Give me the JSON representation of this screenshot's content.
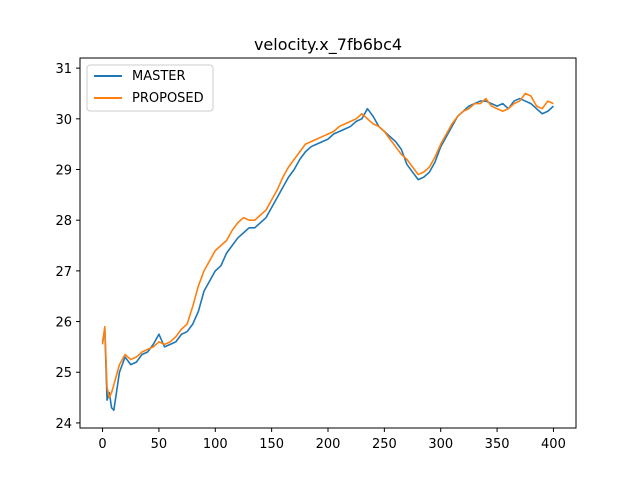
{
  "chart_data": {
    "type": "line",
    "title": "velocity.x_7fb6bc4",
    "xlabel": "",
    "ylabel": "",
    "xlim": [
      -20,
      420
    ],
    "ylim": [
      23.9,
      31.2
    ],
    "xticks": [
      0,
      50,
      100,
      150,
      200,
      250,
      300,
      350,
      400
    ],
    "yticks": [
      24,
      25,
      26,
      27,
      28,
      29,
      30,
      31
    ],
    "grid": false,
    "legend_position": "top-left",
    "series": [
      {
        "name": "MASTER",
        "color": "#1f77b4",
        "x": [
          0,
          2,
          4,
          6,
          8,
          10,
          15,
          20,
          25,
          30,
          35,
          40,
          45,
          50,
          55,
          60,
          65,
          70,
          75,
          80,
          85,
          90,
          95,
          100,
          105,
          110,
          115,
          120,
          125,
          130,
          135,
          140,
          145,
          150,
          155,
          160,
          165,
          170,
          175,
          180,
          185,
          190,
          195,
          200,
          205,
          210,
          215,
          220,
          225,
          230,
          235,
          240,
          245,
          250,
          255,
          260,
          265,
          270,
          275,
          280,
          285,
          290,
          295,
          300,
          305,
          310,
          315,
          320,
          325,
          330,
          335,
          340,
          345,
          350,
          355,
          360,
          365,
          370,
          375,
          380,
          385,
          390,
          395,
          400
        ],
        "values": [
          25.6,
          25.85,
          24.45,
          24.6,
          24.3,
          24.25,
          25.0,
          25.3,
          25.15,
          25.2,
          25.35,
          25.4,
          25.55,
          25.75,
          25.5,
          25.55,
          25.6,
          25.75,
          25.8,
          25.95,
          26.2,
          26.6,
          26.8,
          27.0,
          27.1,
          27.35,
          27.5,
          27.65,
          27.75,
          27.85,
          27.85,
          27.95,
          28.05,
          28.25,
          28.45,
          28.65,
          28.85,
          29.0,
          29.2,
          29.35,
          29.45,
          29.5,
          29.55,
          29.6,
          29.7,
          29.75,
          29.8,
          29.85,
          29.95,
          30.0,
          30.2,
          30.05,
          29.85,
          29.75,
          29.65,
          29.55,
          29.4,
          29.1,
          28.95,
          28.8,
          28.85,
          28.95,
          29.15,
          29.45,
          29.65,
          29.85,
          30.05,
          30.15,
          30.25,
          30.3,
          30.35,
          30.35,
          30.3,
          30.25,
          30.3,
          30.2,
          30.35,
          30.4,
          30.35,
          30.3,
          30.2,
          30.1,
          30.15,
          30.25
        ]
      },
      {
        "name": "PROPOSED",
        "color": "#ff7f0e",
        "x": [
          0,
          2,
          4,
          6,
          8,
          10,
          15,
          20,
          25,
          30,
          35,
          40,
          45,
          50,
          55,
          60,
          65,
          70,
          75,
          80,
          85,
          90,
          95,
          100,
          105,
          110,
          115,
          120,
          125,
          130,
          135,
          140,
          145,
          150,
          155,
          160,
          165,
          170,
          175,
          180,
          185,
          190,
          195,
          200,
          205,
          210,
          215,
          220,
          225,
          230,
          235,
          240,
          245,
          250,
          255,
          260,
          265,
          270,
          275,
          280,
          285,
          290,
          295,
          300,
          305,
          310,
          315,
          320,
          325,
          330,
          335,
          340,
          345,
          350,
          355,
          360,
          365,
          370,
          375,
          380,
          385,
          390,
          395,
          400
        ],
        "values": [
          25.55,
          25.9,
          24.7,
          24.5,
          24.6,
          24.75,
          25.15,
          25.35,
          25.25,
          25.3,
          25.4,
          25.45,
          25.5,
          25.6,
          25.55,
          25.6,
          25.7,
          25.85,
          25.95,
          26.3,
          26.7,
          27.0,
          27.2,
          27.4,
          27.5,
          27.6,
          27.8,
          27.95,
          28.05,
          28.0,
          28.0,
          28.1,
          28.2,
          28.4,
          28.6,
          28.85,
          29.05,
          29.2,
          29.35,
          29.5,
          29.55,
          29.6,
          29.65,
          29.7,
          29.75,
          29.85,
          29.9,
          29.95,
          30.0,
          30.1,
          30.0,
          29.9,
          29.85,
          29.75,
          29.6,
          29.45,
          29.3,
          29.2,
          29.05,
          28.9,
          28.95,
          29.05,
          29.25,
          29.5,
          29.7,
          29.9,
          30.05,
          30.15,
          30.2,
          30.3,
          30.3,
          30.4,
          30.25,
          30.2,
          30.15,
          30.2,
          30.3,
          30.35,
          30.5,
          30.45,
          30.25,
          30.2,
          30.35,
          30.3
        ]
      }
    ]
  }
}
